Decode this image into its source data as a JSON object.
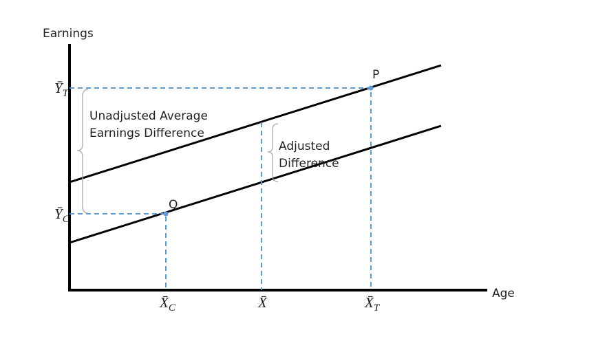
{
  "axes": {
    "y_label": "Earnings",
    "x_label": "Age"
  },
  "points": [
    {
      "label": "P"
    },
    {
      "label": "Q"
    }
  ],
  "y_ticks": [
    {
      "symbol": "Ȳ",
      "subscript": "T"
    },
    {
      "symbol": "Ȳ",
      "subscript": "C"
    }
  ],
  "x_ticks": [
    {
      "symbol": "X̄",
      "subscript": "C"
    },
    {
      "symbol": "X̄"
    },
    {
      "symbol": "X̄",
      "subscript": "T"
    }
  ],
  "annotations": [
    {
      "lines": [
        "Unadjusted Average",
        "Earnings Difference"
      ]
    },
    {
      "lines": [
        "Adjusted",
        "Difference"
      ]
    }
  ]
}
